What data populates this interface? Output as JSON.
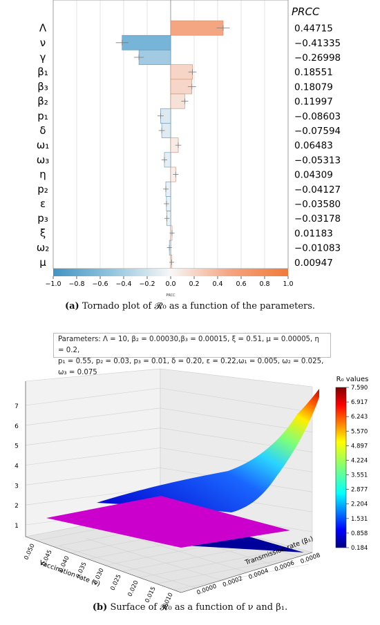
{
  "caption_a": {
    "tag": "(a)",
    "text": "Tornado plot of 𝓡₀ as a function of the parameters."
  },
  "caption_b": {
    "tag": "(b)",
    "text": "Surface of 𝓡₀ as a function of ν and β₁."
  },
  "params": {
    "line1": "Parameters:  Λ = 10, β₂ = 0.00030,β₃ = 0.00015, ξ = 0.51,  μ = 0.00005, η = 0.2,",
    "line2": "p₁ = 0.55, p₂ = 0.03, p₃ = 0.01, δ = 0.20, ε = 0.22,ω₁ = 0.005, ω₂ = 0.025, ω₃ = 0.075"
  },
  "colors": {
    "positive": "#f4a582",
    "negative": "#6baed6",
    "plane": "#cc00cc"
  },
  "chart_data": [
    {
      "type": "bar",
      "orientation": "horizontal",
      "value_header": "PRCC",
      "categories": [
        "Λ",
        "ν",
        "γ",
        "β₁",
        "β₃",
        "β₂",
        "p₁",
        "δ",
        "ω₁",
        "ω₃",
        "η",
        "p₂",
        "ε",
        "p₃",
        "ξ",
        "ω₂",
        "μ"
      ],
      "values": [
        0.44715,
        -0.41335,
        -0.26998,
        0.18551,
        0.18079,
        0.11997,
        -0.08603,
        -0.07594,
        0.06483,
        -0.05313,
        0.04309,
        -0.04127,
        -0.0358,
        -0.03178,
        0.01183,
        -0.01083,
        0.00947
      ],
      "value_labels": [
        "0.44715",
        "−0.41335",
        "−0.26998",
        "0.18551",
        "0.18079",
        "0.11997",
        "−0.08603",
        "−0.07594",
        "0.06483",
        "−0.05313",
        "0.04309",
        "−0.04127",
        "−0.03580",
        "−0.03178",
        "0.01183",
        "−0.01083",
        "0.00947"
      ],
      "xlim": [
        -1.0,
        1.0
      ],
      "xticks": [
        "−1.0",
        "−0.8",
        "−0.6",
        "−0.4",
        "−0.2",
        "0.0",
        "0.2",
        "0.4",
        "0.6",
        "0.8",
        "1.0"
      ],
      "colorbar_label": "PRCC",
      "grid": true
    },
    {
      "type": "surface",
      "xlabel": "Vaccination rate (ν)",
      "ylabel": "Transmission rate (β₁)",
      "zlabel": "",
      "x_ticks": [
        "0.050",
        "0.045",
        "0.040",
        "0.035",
        "0.030",
        "0.025",
        "0.020",
        "0.015",
        "0.010"
      ],
      "y_ticks": [
        "0.0000",
        "0.0002",
        "0.0004",
        "0.0006",
        "0.0008"
      ],
      "z_ticks": [
        "1",
        "2",
        "3",
        "4",
        "5",
        "6",
        "7"
      ],
      "zlim": [
        0.184,
        7.59
      ],
      "reference_plane": 1,
      "colorbar_title": "R₀ values",
      "colorbar_ticks": [
        "7.590",
        "6.917",
        "6.243",
        "5.570",
        "4.897",
        "4.224",
        "3.551",
        "2.877",
        "2.204",
        "1.531",
        "0.858",
        "0.184"
      ]
    }
  ]
}
